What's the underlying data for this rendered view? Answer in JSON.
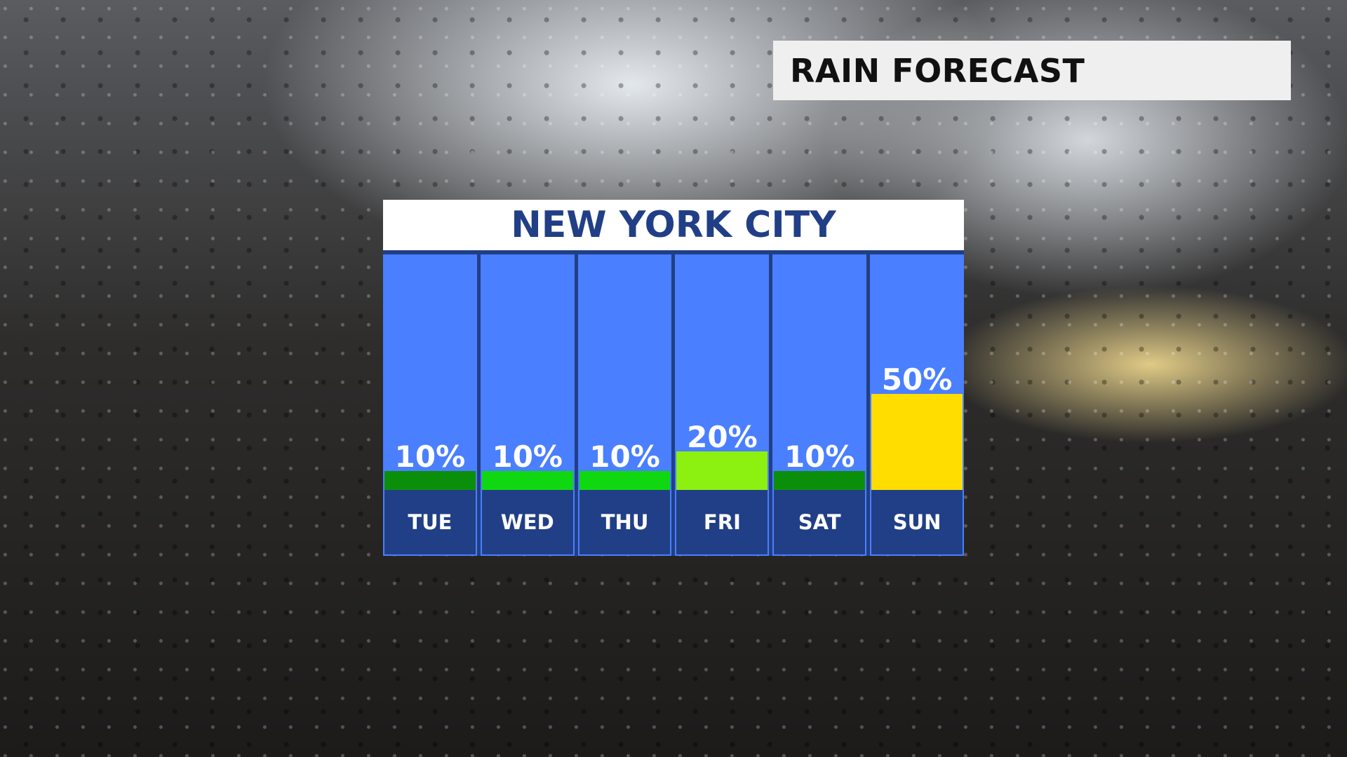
{
  "headline": "RAIN FORECAST",
  "chart_data": {
    "type": "bar",
    "title": "NEW YORK CITY",
    "categories": [
      "TUE",
      "WED",
      "THU",
      "FRI",
      "SAT",
      "SUN"
    ],
    "values": [
      10,
      10,
      10,
      20,
      10,
      50
    ],
    "labels": [
      "10%",
      "10%",
      "10%",
      "20%",
      "10%",
      "50%"
    ],
    "colors": [
      "#0b8f0b",
      "#10d810",
      "#10d810",
      "#8cf010",
      "#0b8f0b",
      "#ffdd00"
    ],
    "unit": "%",
    "ylim": [
      0,
      100
    ],
    "grid": false,
    "background_color": "#4a7fff",
    "label_band_color": "#213f86"
  }
}
